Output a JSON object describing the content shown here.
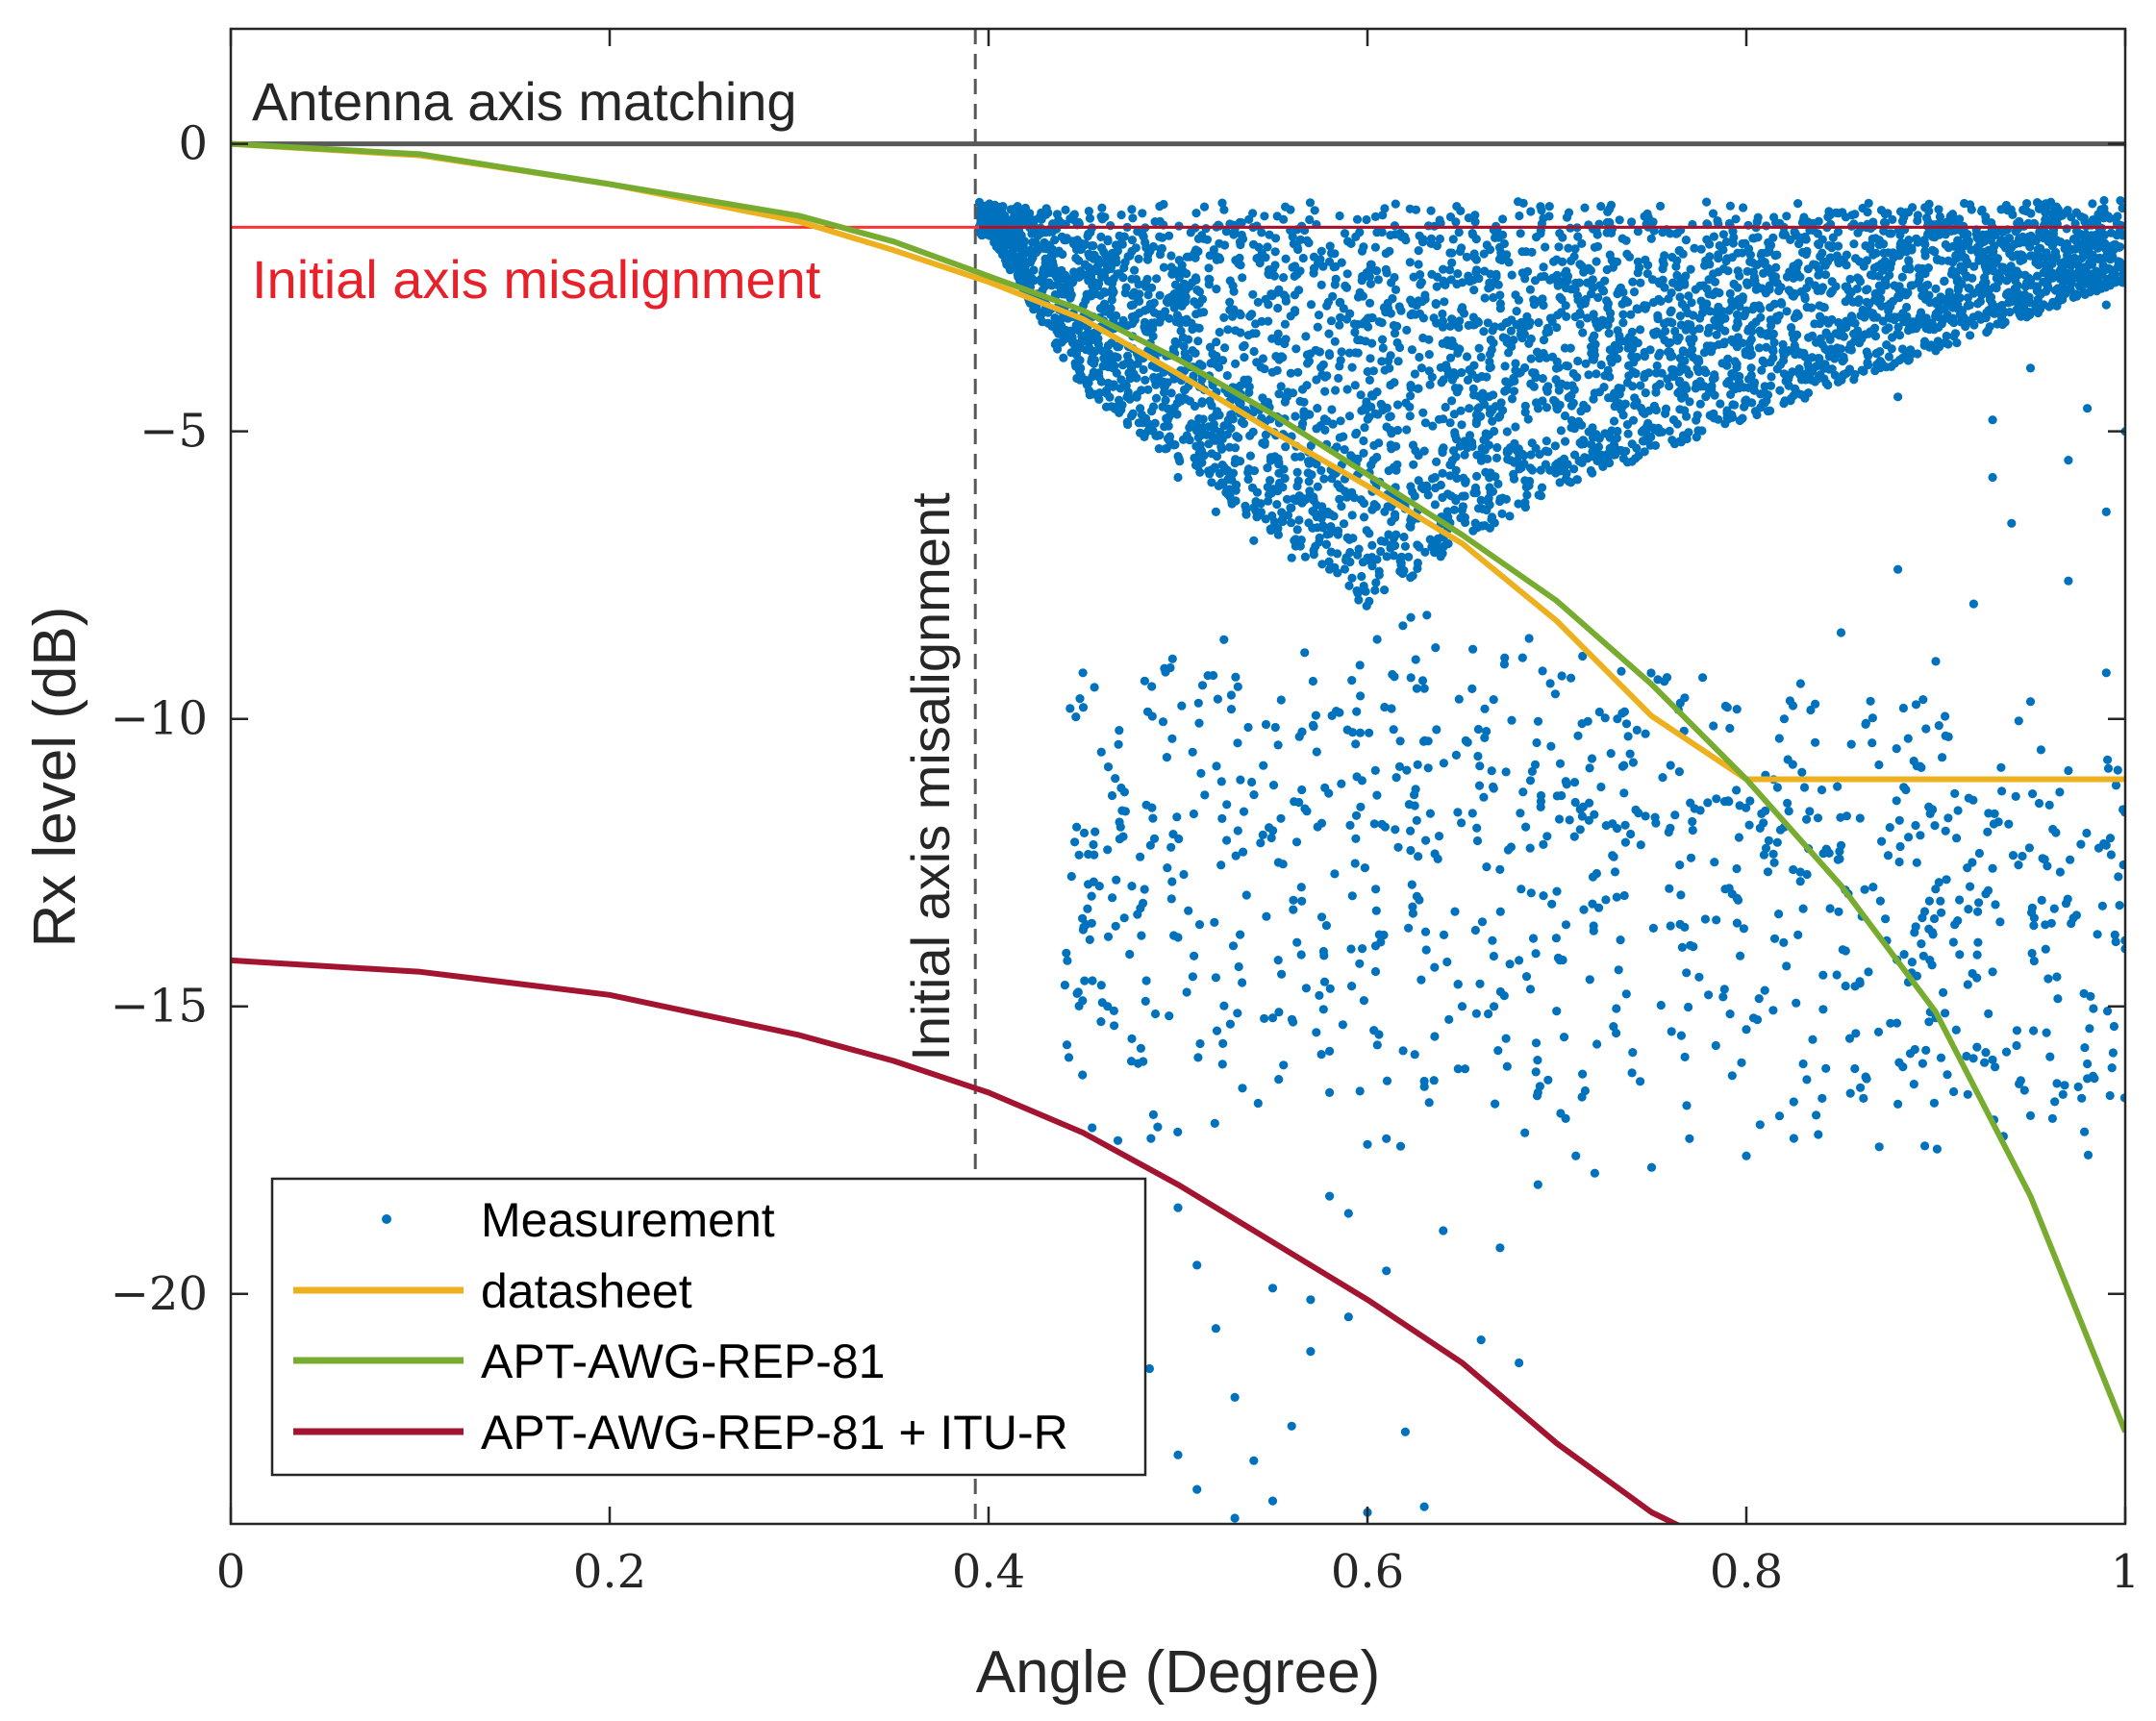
{
  "chart_data": {
    "type": "scatter",
    "xlabel": "Angle (Degree)",
    "ylabel": "Rx level (dB)",
    "xlim": [
      0,
      1
    ],
    "ylim": [
      -24,
      2
    ],
    "x_ticks": [
      {
        "value": 0,
        "label": "0"
      },
      {
        "value": 0.2,
        "label": "0.2"
      },
      {
        "value": 0.4,
        "label": "0.4"
      },
      {
        "value": 0.6,
        "label": "0.6"
      },
      {
        "value": 0.8,
        "label": "0.8"
      },
      {
        "value": 1,
        "label": "1"
      }
    ],
    "y_ticks": [
      {
        "value": 0,
        "label": "0"
      },
      {
        "value": -5,
        "label": "−5"
      },
      {
        "value": -10,
        "label": "−10"
      },
      {
        "value": -15,
        "label": "−15"
      },
      {
        "value": -20,
        "label": "−20"
      }
    ],
    "reference_lines": [
      {
        "name": "Antenna axis matching",
        "orientation": "horizontal",
        "value": 0,
        "color": "#595959",
        "style": "solid"
      },
      {
        "name": "Initial axis misalignment",
        "orientation": "horizontal",
        "value": -1.45,
        "color": "#ff3333",
        "style": "solid"
      },
      {
        "name": "Initial axis misalignment",
        "orientation": "vertical",
        "value": 0.393,
        "color": "#595959",
        "style": "dashed"
      }
    ],
    "series": [
      {
        "name": "Measurement",
        "kind": "scatter",
        "color": "#0072bd",
        "description": "dense cloud for angle 0.39–1.0; upper edge near −1 dB, main body down to about −8 dB, sparse points down to about −24 dB",
        "points": [
          [
            0.4,
            -1.4
          ],
          [
            0.41,
            -1.6
          ],
          [
            0.43,
            -2.0
          ],
          [
            0.44,
            -2.5
          ],
          [
            0.45,
            -3.0
          ],
          [
            0.46,
            -3.6
          ],
          [
            0.47,
            -4.1
          ],
          [
            0.48,
            -4.6
          ],
          [
            0.49,
            -5.3
          ],
          [
            0.5,
            -5.8
          ],
          [
            0.52,
            -6.4
          ],
          [
            0.54,
            -6.9
          ],
          [
            0.56,
            -7.2
          ],
          [
            0.58,
            -7.4
          ],
          [
            0.6,
            -7.2
          ],
          [
            0.62,
            -7.0
          ],
          [
            0.64,
            -6.6
          ],
          [
            0.66,
            -6.2
          ],
          [
            0.68,
            -5.4
          ],
          [
            0.7,
            -4.6
          ],
          [
            0.45,
            -9.8
          ],
          [
            0.47,
            -11.2
          ],
          [
            0.48,
            -12.4
          ],
          [
            0.5,
            -13.8
          ],
          [
            0.52,
            -14.5
          ],
          [
            0.55,
            -15.2
          ],
          [
            0.58,
            -16.5
          ],
          [
            0.6,
            -17.4
          ],
          [
            0.63,
            -16.3
          ],
          [
            0.65,
            -15.0
          ],
          [
            0.68,
            -14.2
          ],
          [
            0.7,
            -13.0
          ],
          [
            0.73,
            -12.4
          ],
          [
            0.76,
            -13.6
          ],
          [
            0.78,
            -14.8
          ],
          [
            0.8,
            -15.4
          ],
          [
            0.83,
            -16.0
          ],
          [
            0.86,
            -14.6
          ],
          [
            0.88,
            -16.7
          ],
          [
            0.9,
            -15.2
          ],
          [
            0.93,
            -14.4
          ],
          [
            0.95,
            -16.9
          ],
          [
            0.98,
            -16.0
          ],
          [
            1.0,
            -14.0
          ],
          [
            0.77,
            -17.3
          ],
          [
            0.8,
            -17.6
          ],
          [
            0.84,
            -16.6
          ],
          [
            0.74,
            -15.8
          ],
          [
            0.72,
            -17.9
          ],
          [
            0.69,
            -16.5
          ],
          [
            0.5,
            -18.5
          ],
          [
            0.51,
            -19.5
          ],
          [
            0.52,
            -20.6
          ],
          [
            0.53,
            -21.8
          ],
          [
            0.55,
            -19.9
          ],
          [
            0.56,
            -22.3
          ],
          [
            0.57,
            -21.0
          ],
          [
            0.58,
            -18.3
          ],
          [
            0.59,
            -20.4
          ],
          [
            0.61,
            -19.6
          ],
          [
            0.62,
            -22.4
          ],
          [
            0.64,
            -18.9
          ],
          [
            0.66,
            -20.8
          ],
          [
            0.67,
            -19.2
          ],
          [
            0.68,
            -21.2
          ],
          [
            0.51,
            -23.4
          ],
          [
            0.53,
            -23.9
          ],
          [
            0.55,
            -23.6
          ],
          [
            0.6,
            -23.8
          ],
          [
            0.63,
            -23.7
          ],
          [
            0.485,
            -21.3
          ],
          [
            0.47,
            -22.5
          ],
          [
            0.5,
            -22.8
          ],
          [
            0.54,
            -22.9
          ],
          [
            0.57,
            -20.1
          ],
          [
            0.59,
            -18.6
          ],
          [
            0.61,
            -17.3
          ],
          [
            0.69,
            -18.1
          ],
          [
            0.71,
            -17.6
          ],
          [
            0.75,
            -17.8
          ],
          [
            0.82,
            -10.0
          ],
          [
            0.85,
            -8.5
          ],
          [
            0.88,
            -7.4
          ],
          [
            0.9,
            -9.0
          ],
          [
            0.92,
            -8.0
          ],
          [
            0.95,
            -9.7
          ],
          [
            0.97,
            -10.9
          ],
          [
            0.99,
            -12.2
          ],
          [
            0.94,
            -6.6
          ],
          [
            0.97,
            -7.6
          ],
          [
            0.99,
            -9.2
          ],
          [
            0.96,
            -11.5
          ],
          [
            0.93,
            -12.6
          ],
          [
            0.91,
            -11.3
          ],
          [
            0.89,
            -12.5
          ],
          [
            0.87,
            -10.8
          ],
          [
            0.85,
            -12.2
          ],
          [
            0.83,
            -13.3
          ],
          [
            0.81,
            -11.6
          ],
          [
            0.79,
            -9.8
          ],
          [
            0.82,
            -4.0
          ],
          [
            0.85,
            -3.2
          ],
          [
            0.88,
            -4.4
          ],
          [
            0.9,
            -3.6
          ],
          [
            0.93,
            -4.8
          ],
          [
            0.95,
            -3.9
          ],
          [
            0.98,
            -4.6
          ],
          [
            0.99,
            -2.8
          ],
          [
            0.96,
            -2.2
          ],
          [
            0.92,
            -2.6
          ],
          [
            0.87,
            -2.3
          ],
          [
            0.84,
            -1.9
          ],
          [
            0.8,
            -2.9
          ],
          [
            0.77,
            -3.4
          ],
          [
            0.74,
            -2.4
          ],
          [
            0.72,
            -1.8
          ],
          [
            0.99,
            -6.4
          ],
          [
            1.0,
            -5.0
          ],
          [
            0.97,
            -5.5
          ],
          [
            0.93,
            -5.8
          ]
        ]
      },
      {
        "name": "datasheet",
        "kind": "line",
        "color": "#edb120",
        "points": [
          [
            0,
            0
          ],
          [
            0.1,
            -0.2
          ],
          [
            0.2,
            -0.7
          ],
          [
            0.3,
            -1.35
          ],
          [
            0.35,
            -1.85
          ],
          [
            0.4,
            -2.4
          ],
          [
            0.45,
            -3.05
          ],
          [
            0.5,
            -4.0
          ],
          [
            0.55,
            -5.0
          ],
          [
            0.6,
            -5.95
          ],
          [
            0.65,
            -6.95
          ],
          [
            0.7,
            -8.3
          ],
          [
            0.75,
            -9.95
          ],
          [
            0.8,
            -11.05
          ],
          [
            0.9,
            -11.05
          ],
          [
            1.0,
            -11.05
          ]
        ]
      },
      {
        "name": "APT-AWG-REP-81",
        "kind": "line",
        "color": "#77ac30",
        "points": [
          [
            0,
            0
          ],
          [
            0.1,
            -0.18
          ],
          [
            0.2,
            -0.7
          ],
          [
            0.3,
            -1.25
          ],
          [
            0.35,
            -1.7
          ],
          [
            0.4,
            -2.3
          ],
          [
            0.45,
            -2.9
          ],
          [
            0.5,
            -3.75
          ],
          [
            0.55,
            -4.7
          ],
          [
            0.6,
            -5.75
          ],
          [
            0.65,
            -6.8
          ],
          [
            0.7,
            -7.95
          ],
          [
            0.75,
            -9.4
          ],
          [
            0.8,
            -11.05
          ],
          [
            0.85,
            -12.9
          ],
          [
            0.9,
            -15.1
          ],
          [
            0.95,
            -18.3
          ],
          [
            1.0,
            -22.4
          ]
        ]
      },
      {
        "name": "APT-AWG-REP-81 + ITU-R",
        "kind": "line",
        "color": "#a2142f",
        "points": [
          [
            0,
            -14.2
          ],
          [
            0.1,
            -14.4
          ],
          [
            0.2,
            -14.8
          ],
          [
            0.3,
            -15.5
          ],
          [
            0.35,
            -15.95
          ],
          [
            0.4,
            -16.5
          ],
          [
            0.45,
            -17.2
          ],
          [
            0.5,
            -18.1
          ],
          [
            0.55,
            -19.1
          ],
          [
            0.6,
            -20.1
          ],
          [
            0.65,
            -21.2
          ],
          [
            0.7,
            -22.6
          ],
          [
            0.75,
            -23.8
          ],
          [
            0.775,
            -24.2
          ]
        ]
      }
    ],
    "annotations": [
      {
        "text": "Antenna axis matching",
        "color": "#262626"
      },
      {
        "text": "Initial axis misalignment",
        "color": "#e8202a"
      },
      {
        "text": "Initial axis misalignment",
        "color": "#262626",
        "rotation": "vertical"
      }
    ],
    "legend": {
      "position": "bottom-left",
      "entries": [
        "Measurement",
        "datasheet",
        "APT-AWG-REP-81",
        "APT-AWG-REP-81 + ITU-R"
      ]
    },
    "grid": false
  }
}
